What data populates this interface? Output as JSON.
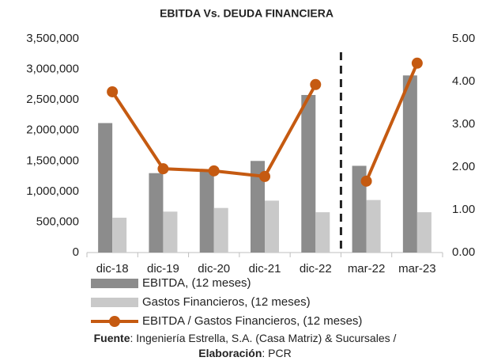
{
  "chart_data": {
    "type": "bar-line",
    "title": "EBITDA Vs. DEUDA FINANCIERA",
    "categories": [
      "dic-18",
      "dic-19",
      "dic-20",
      "dic-21",
      "dic-22",
      "mar-22",
      "mar-23"
    ],
    "series": [
      {
        "name": "EBITDA, (12 meses)",
        "type": "bar",
        "color": "#8c8c8c",
        "values": [
          2120000,
          1300000,
          1330000,
          1500000,
          2580000,
          1420000,
          2900000
        ]
      },
      {
        "name": "Gastos Financieros, (12 meses)",
        "type": "bar",
        "color": "#c9c9c9",
        "values": [
          570000,
          670000,
          730000,
          850000,
          660000,
          860000,
          660000
        ]
      },
      {
        "name": "EBITDA / Gastos Financieros, (12 meses)",
        "type": "line",
        "axis": "y2",
        "color": "#c55a11",
        "values": [
          3.76,
          1.96,
          1.91,
          1.78,
          3.93,
          1.67,
          4.43
        ]
      }
    ],
    "divider_after": 4,
    "ylim": [
      0,
      3500000
    ],
    "yticks": [
      0,
      {
        "value": 500000,
        "label": "500,000"
      },
      {
        "value": 1000000,
        "label": "1,000,000"
      },
      {
        "value": 1500000,
        "label": "1,500,000"
      },
      {
        "value": 2000000,
        "label": "2,000,000"
      },
      {
        "value": 2500000,
        "label": "2,500,000"
      },
      {
        "value": 3000000,
        "label": "3,000,000"
      },
      {
        "value": 3500000,
        "label": "3,500,000"
      }
    ],
    "y2lim": [
      0,
      5
    ],
    "y2ticks": [
      {
        "value": 0,
        "label": "0.00"
      },
      {
        "value": 1,
        "label": "1.00"
      },
      {
        "value": 2,
        "label": "2.00"
      },
      {
        "value": 3,
        "label": "3.00"
      },
      {
        "value": 4,
        "label": "4.00"
      },
      {
        "value": 5,
        "label": "5.00"
      }
    ],
    "source": {
      "label1": "Fuente",
      "text1": ": Ingeniería Estrella, S.A. (Casa Matriz) & Sucursales /",
      "label2": "Elaboración",
      "text2": ": PCR"
    }
  }
}
